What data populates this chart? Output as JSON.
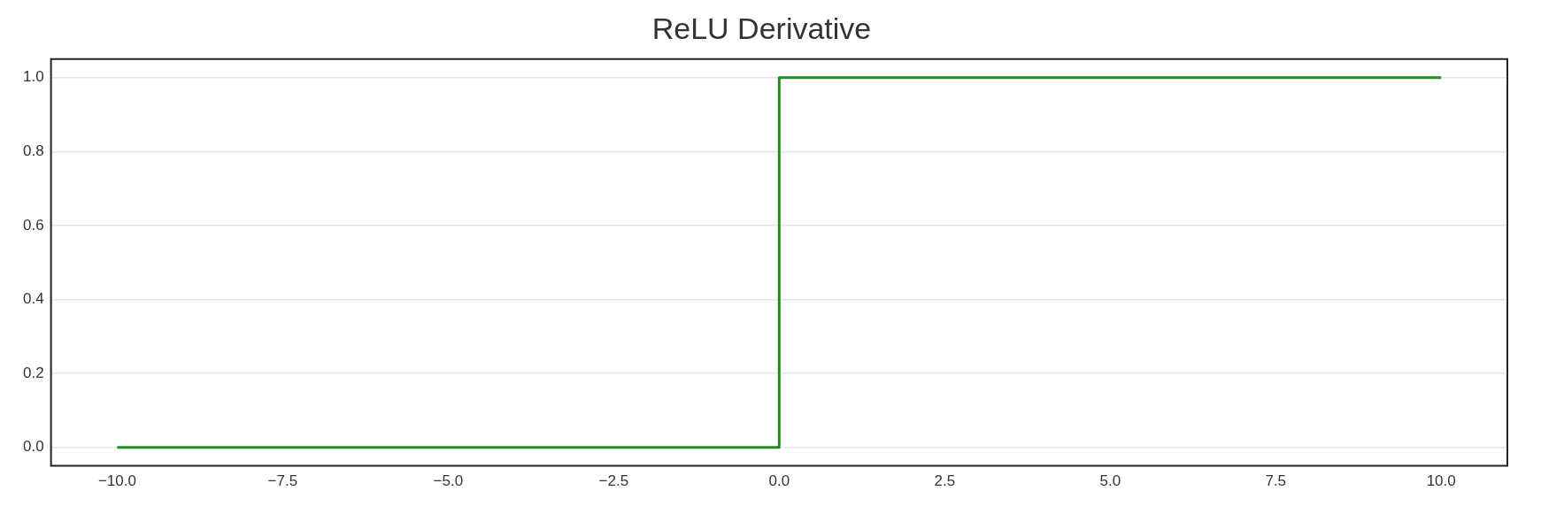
{
  "chart_data": {
    "type": "line",
    "title": "ReLU Derivative",
    "x": [
      -10,
      0,
      0,
      10
    ],
    "series": [
      {
        "color": "#228b22",
        "values": [
          0,
          0,
          1,
          1
        ]
      }
    ],
    "xlim": [
      -11,
      11
    ],
    "ylim": [
      -0.05,
      1.05
    ],
    "xticks": [
      {
        "value": -10,
        "label": "−10.0"
      },
      {
        "value": -7.5,
        "label": "−7.5"
      },
      {
        "value": -5,
        "label": "−5.0"
      },
      {
        "value": -2.5,
        "label": "−2.5"
      },
      {
        "value": 0,
        "label": "0.0"
      },
      {
        "value": 2.5,
        "label": "2.5"
      },
      {
        "value": 5,
        "label": "5.0"
      },
      {
        "value": 7.5,
        "label": "7.5"
      },
      {
        "value": 10,
        "label": "10.0"
      }
    ],
    "yticks": [
      {
        "value": 0,
        "label": "0.0"
      },
      {
        "value": 0.2,
        "label": "0.2"
      },
      {
        "value": 0.4,
        "label": "0.4"
      },
      {
        "value": 0.6,
        "label": "0.6"
      },
      {
        "value": 0.8,
        "label": "0.8"
      },
      {
        "value": 1,
        "label": "1.0"
      }
    ],
    "grid": "y",
    "legend": false,
    "marker": "none",
    "line_style": "solid"
  }
}
